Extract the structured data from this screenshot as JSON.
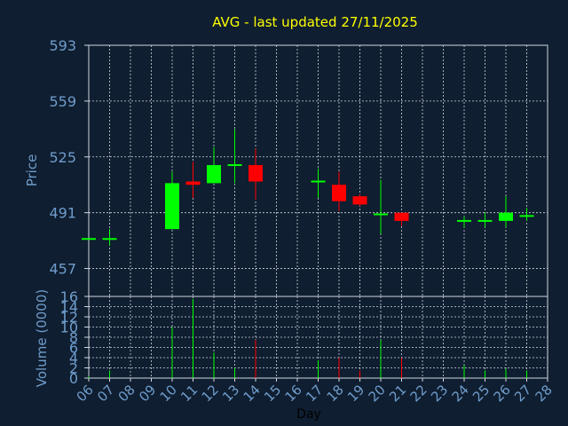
{
  "chart_data": [
    {
      "type": "candlestick",
      "title": "AVG - last updated 27/11/2025",
      "ylabel": "Price",
      "ylim": [
        440,
        593
      ],
      "yticks": [
        "593",
        "559",
        "525",
        "491",
        "457"
      ],
      "ytick_values": [
        593,
        559,
        525,
        491,
        457
      ],
      "grid": true,
      "x": [
        "06",
        "07",
        "10",
        "11",
        "12",
        "13",
        "14",
        "17",
        "18",
        "19",
        "20",
        "21",
        "24",
        "25",
        "26",
        "27"
      ],
      "series": [
        {
          "open": [
            475,
            475,
            481,
            510,
            509,
            520,
            520,
            510,
            508,
            501,
            490,
            491,
            486,
            486,
            486,
            489
          ],
          "high": [
            475,
            481,
            516,
            522,
            531,
            542,
            530,
            518,
            516,
            502,
            511,
            491,
            489,
            491,
            501,
            494
          ],
          "low": [
            475,
            471,
            481,
            500,
            509,
            509,
            499,
            500,
            492,
            495,
            478,
            483,
            482,
            482,
            482,
            486
          ],
          "close": [
            475,
            475,
            509,
            508,
            520,
            520,
            510,
            510,
            498,
            496,
            490,
            486,
            486,
            486,
            491,
            489
          ]
        }
      ],
      "up_color": "#00ff00",
      "down_color": "#ff0000"
    },
    {
      "type": "bar",
      "ylabel": "Volume (0000)",
      "xlabel": "Day",
      "ylim": [
        0,
        16
      ],
      "yticks": [
        "16",
        "14",
        "12",
        "10",
        "8",
        "6",
        "4",
        "2",
        "0"
      ],
      "ytick_values": [
        16,
        14,
        12,
        10,
        8,
        6,
        4,
        2,
        0
      ],
      "categories": [
        "06",
        "07",
        "08",
        "09",
        "10",
        "11",
        "12",
        "13",
        "14",
        "15",
        "16",
        "17",
        "18",
        "19",
        "20",
        "21",
        "22",
        "23",
        "24",
        "25",
        "26",
        "27",
        "28"
      ],
      "values": [
        0.3,
        1.5,
        0,
        0,
        10,
        15.5,
        5,
        2,
        7.5,
        0,
        0,
        3.5,
        4,
        1.5,
        7.5,
        4,
        0,
        0,
        2.5,
        1.5,
        1.8,
        1.5,
        0
      ],
      "bar_colors": [
        "#00ff00",
        "#00ff00",
        "#00ff00",
        "#00ff00",
        "#00ff00",
        "#00ff00",
        "#00ff00",
        "#00ff00",
        "#ff0000",
        "#00ff00",
        "#00ff00",
        "#00ff00",
        "#ff0000",
        "#ff0000",
        "#00ff00",
        "#ff0000",
        "#00ff00",
        "#00ff00",
        "#00ff00",
        "#00ff00",
        "#00ff00",
        "#00ff00",
        "#00ff00"
      ]
    }
  ],
  "colors": {
    "background": "#0f1e30",
    "title": "#ffff00",
    "axis_text": "#6f9ccc",
    "grid": "#d0d8e0",
    "xlabel": "#000000"
  }
}
